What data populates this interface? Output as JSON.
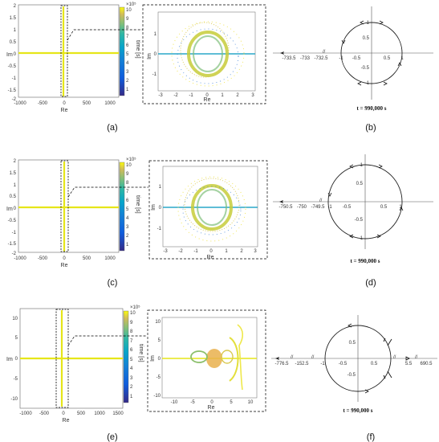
{
  "colorbar": {
    "label": "time [s]",
    "exponent": "×10⁵",
    "ticks": [
      "10",
      "9",
      "8",
      "7",
      "6",
      "5",
      "4",
      "3",
      "2",
      "1"
    ],
    "ticks_e": [
      "10",
      "9",
      "8",
      "7",
      "6",
      "5",
      "4",
      "3",
      "2",
      "1"
    ]
  },
  "rows": [
    {
      "main_ylabel": "Im",
      "main_xlabel": "Re",
      "main_yticks": [
        "2",
        "1.5",
        "1",
        "0.5",
        "0",
        "-0.5",
        "-1",
        "-1.5",
        "-2"
      ],
      "main_xticks": [
        "-1000",
        "-500",
        "0",
        "500",
        "1000"
      ],
      "inset_ylabel": "Im",
      "inset_xlabel": "Re",
      "inset_yticks": [
        "1",
        "0",
        "-1"
      ],
      "inset_xticks": [
        "-3",
        "-2",
        "-1",
        "0",
        "1",
        "2",
        "3"
      ],
      "circle_xticks": [
        "-733.5",
        "-733",
        "-732.5",
        "-1",
        "-0.5",
        "0.5",
        "1"
      ],
      "circle_yticks": [
        "1",
        "0.5",
        "-0.5",
        "-1"
      ],
      "break_symbol": "//",
      "time_label": "t = 990,000 s",
      "cap_left": "(a)",
      "cap_right": "(b)"
    },
    {
      "main_ylabel": "Im",
      "main_xlabel": "Re",
      "main_yticks": [
        "2",
        "1.5",
        "1",
        "0.5",
        "0",
        "-0.5",
        "-1",
        "-1.5",
        "-2"
      ],
      "main_xticks": [
        "-1000",
        "-500",
        "0",
        "500",
        "1000"
      ],
      "inset_ylabel": "Im",
      "inset_xlabel": "Re",
      "inset_yticks": [
        "1",
        "0",
        "-1"
      ],
      "inset_xticks": [
        "-3",
        "-2",
        "-1",
        "0",
        "1",
        "2",
        "3"
      ],
      "circle_xticks": [
        "-750.5",
        "-750",
        "-749.5",
        "-1",
        "-0.5",
        "0.5",
        "1"
      ],
      "circle_yticks": [
        "1",
        "0.5",
        "-0.5",
        "-1"
      ],
      "break_symbol": "//",
      "time_label": "t = 990,000 s",
      "cap_left": "(c)",
      "cap_right": "(d)"
    },
    {
      "main_ylabel": "Im",
      "main_xlabel": "Re",
      "main_yticks": [
        "10",
        "5",
        "0",
        "-5",
        "-10"
      ],
      "main_xticks": [
        "-1000",
        "-500",
        "0",
        "500",
        "1000",
        "1500"
      ],
      "inset_ylabel": "Im",
      "inset_xlabel": "Re",
      "inset_yticks": [
        "10",
        "5",
        "0",
        "-5",
        "-10"
      ],
      "inset_xticks": [
        "-10",
        "-5",
        "0",
        "5",
        "10"
      ],
      "circle_xticks": [
        "-776.5",
        "-152.5",
        "-1",
        "-0.5",
        "0.5",
        "5.5",
        "690.5"
      ],
      "circle_yticks": [
        "0.5",
        "-0.5"
      ],
      "break_symbol": "//",
      "time_label": "t = 990,000 s",
      "cap_left": "(e)",
      "cap_right": "(f)"
    }
  ]
}
